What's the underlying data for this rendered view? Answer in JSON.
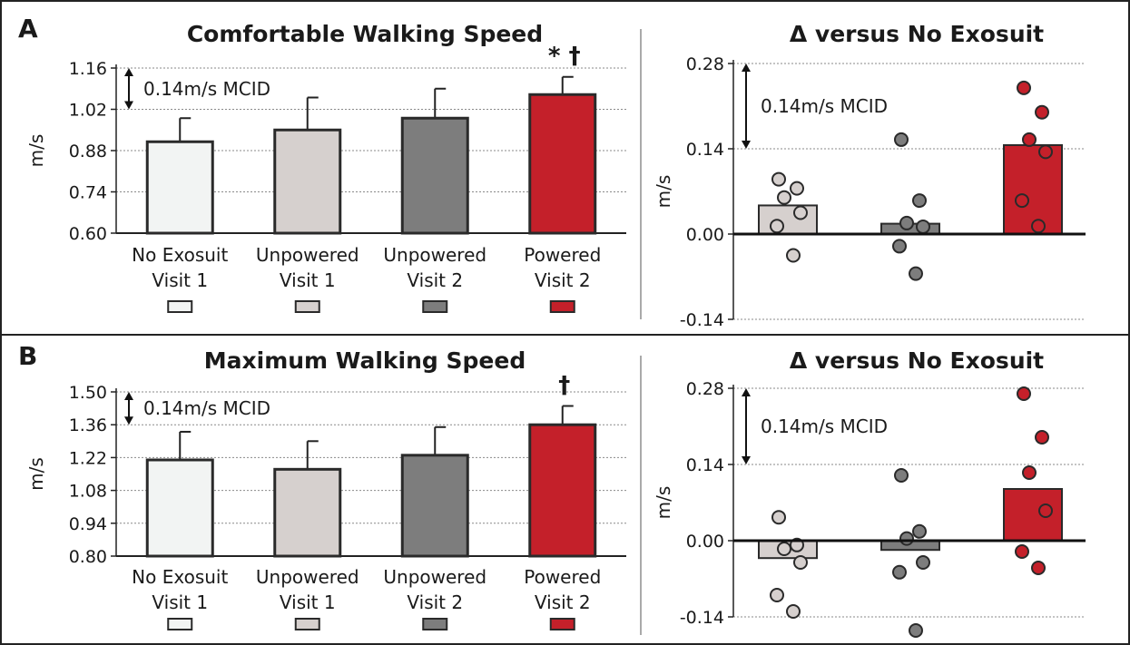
{
  "colors": {
    "no_exosuit_v1": "#f2f4f3",
    "unpowered_v1": "#d6d0ce",
    "unpowered_v2": "#7d7d7d",
    "powered_v2": "#c4202a",
    "outline": "#2a2a2a"
  },
  "chart_data": [
    {
      "id": "A-left",
      "panel": "A",
      "type": "bar",
      "title": "Comfortable Walking Speed",
      "ylabel": "m/s",
      "ylim": [
        0.6,
        1.16
      ],
      "yticks": [
        "0.60",
        "0.74",
        "0.88",
        "1.02",
        "1.16"
      ],
      "grid": true,
      "categories": [
        [
          "No Exosuit",
          "Visit 1"
        ],
        [
          "Unpowered",
          "Visit 1"
        ],
        [
          "Unpowered",
          "Visit 2"
        ],
        [
          "Powered",
          "Visit 2"
        ]
      ],
      "values": [
        0.91,
        0.95,
        0.99,
        1.07
      ],
      "error": [
        0.08,
        0.11,
        0.1,
        0.06
      ],
      "significance": [
        "",
        "",
        "",
        "* †"
      ],
      "annotation": "0.14m/s MCID",
      "annotation_range": [
        1.02,
        1.16
      ]
    },
    {
      "id": "A-right",
      "panel": "A",
      "type": "scatter",
      "title": "Δ versus No Exosuit",
      "ylabel": "m/s",
      "ylim": [
        -0.14,
        0.28
      ],
      "yticks": [
        "0.28",
        "0.14",
        "0.00",
        "-0.14"
      ],
      "grid": true,
      "series": [
        {
          "mean": 0.047,
          "points": [
            0.09,
            0.075,
            0.06,
            0.035,
            0.013,
            -0.035
          ]
        },
        {
          "mean": 0.017,
          "points": [
            0.155,
            0.055,
            0.018,
            0.012,
            -0.02,
            -0.065
          ]
        },
        {
          "mean": 0.146,
          "points": [
            0.24,
            0.2,
            0.155,
            0.135,
            0.055,
            0.013
          ]
        }
      ],
      "annotation": "0.14m/s MCID",
      "annotation_range": [
        0.14,
        0.28
      ]
    },
    {
      "id": "B-left",
      "panel": "B",
      "type": "bar",
      "title": "Maximum  Walking Speed",
      "ylabel": "m/s",
      "ylim": [
        0.8,
        1.5
      ],
      "yticks": [
        "0.80",
        "0.94",
        "1.08",
        "1.22",
        "1.36",
        "1.50"
      ],
      "grid": true,
      "categories": [
        [
          "No Exosuit",
          "Visit 1"
        ],
        [
          "Unpowered",
          "Visit 1"
        ],
        [
          "Unpowered",
          "Visit 2"
        ],
        [
          "Powered",
          "Visit 2"
        ]
      ],
      "values": [
        1.21,
        1.17,
        1.23,
        1.36
      ],
      "error": [
        0.12,
        0.12,
        0.12,
        0.08
      ],
      "significance": [
        "",
        "",
        "",
        "†"
      ],
      "annotation": "0.14m/s MCID",
      "annotation_range": [
        1.36,
        1.5
      ]
    },
    {
      "id": "B-right",
      "panel": "B",
      "type": "scatter",
      "title": "Δ versus No Exosuit",
      "ylabel": "m/s",
      "ylim": [
        -0.14,
        0.28
      ],
      "yticks": [
        "0.28",
        "0.14",
        "0.00",
        "-0.14"
      ],
      "grid": true,
      "series": [
        {
          "mean": -0.032,
          "points": [
            0.043,
            -0.008,
            -0.015,
            -0.04,
            -0.1,
            -0.13
          ]
        },
        {
          "mean": -0.017,
          "points": [
            0.12,
            0.017,
            0.004,
            -0.04,
            -0.058,
            -0.165
          ]
        },
        {
          "mean": 0.095,
          "points": [
            0.27,
            0.19,
            0.125,
            0.055,
            -0.02,
            -0.05
          ]
        }
      ],
      "annotation": "0.14m/s MCID",
      "annotation_range": [
        0.14,
        0.28
      ]
    }
  ],
  "panels": {
    "A": {
      "letter": "A"
    },
    "B": {
      "letter": "B"
    }
  }
}
